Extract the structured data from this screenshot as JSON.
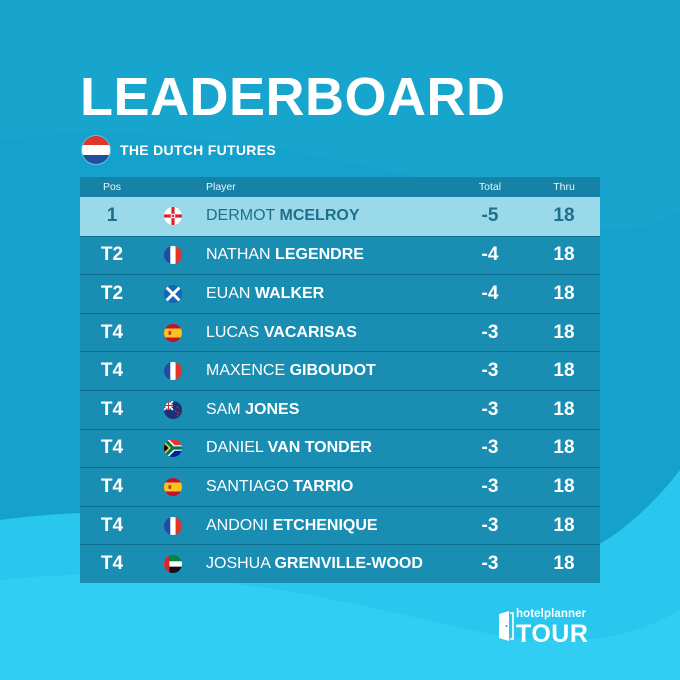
{
  "title": "LEADERBOARD",
  "event": {
    "name": "THE DUTCH FUTURES",
    "flag": "netherlands-flag-icon"
  },
  "columns": {
    "pos": "Pos",
    "player": "Player",
    "total": "Total",
    "thru": "Thru"
  },
  "rows": [
    {
      "pos": "1",
      "flag": "northern-ireland-flag-icon",
      "first": "DERMOT",
      "last": "MCELROY",
      "total": "-5",
      "thru": "18"
    },
    {
      "pos": "T2",
      "flag": "france-flag-icon",
      "first": "NATHAN",
      "last": "LEGENDRE",
      "total": "-4",
      "thru": "18"
    },
    {
      "pos": "T2",
      "flag": "scotland-flag-icon",
      "first": "EUAN",
      "last": "WALKER",
      "total": "-4",
      "thru": "18"
    },
    {
      "pos": "T4",
      "flag": "spain-flag-icon",
      "first": "LUCAS",
      "last": "VACARISAS",
      "total": "-3",
      "thru": "18"
    },
    {
      "pos": "T4",
      "flag": "france-flag-icon",
      "first": "MAXENCE",
      "last": "GIBOUDOT",
      "total": "-3",
      "thru": "18"
    },
    {
      "pos": "T4",
      "flag": "new-zealand-flag-icon",
      "first": "SAM",
      "last": "JONES",
      "total": "-3",
      "thru": "18"
    },
    {
      "pos": "T4",
      "flag": "south-africa-flag-icon",
      "first": "DANIEL",
      "last": "VAN TONDER",
      "total": "-3",
      "thru": "18"
    },
    {
      "pos": "T4",
      "flag": "spain-flag-icon",
      "first": "SANTIAGO",
      "last": "TARRIO",
      "total": "-3",
      "thru": "18"
    },
    {
      "pos": "T4",
      "flag": "france-flag-icon",
      "first": "ANDONI",
      "last": "ETCHENIQUE",
      "total": "-3",
      "thru": "18"
    },
    {
      "pos": "T4",
      "flag": "uae-flag-icon",
      "first": "JOSHUA",
      "last": "GRENVILLE-WOOD",
      "total": "-3",
      "thru": "18"
    }
  ],
  "logo": {
    "top": "hotelplanner",
    "bottom": "TOUR"
  },
  "colors": {
    "background": "#14a2cc",
    "leader_row": "#9ad9ea",
    "row": "#1a8db2",
    "header": "#1683a6",
    "accent_light": "#5fd4f2"
  }
}
